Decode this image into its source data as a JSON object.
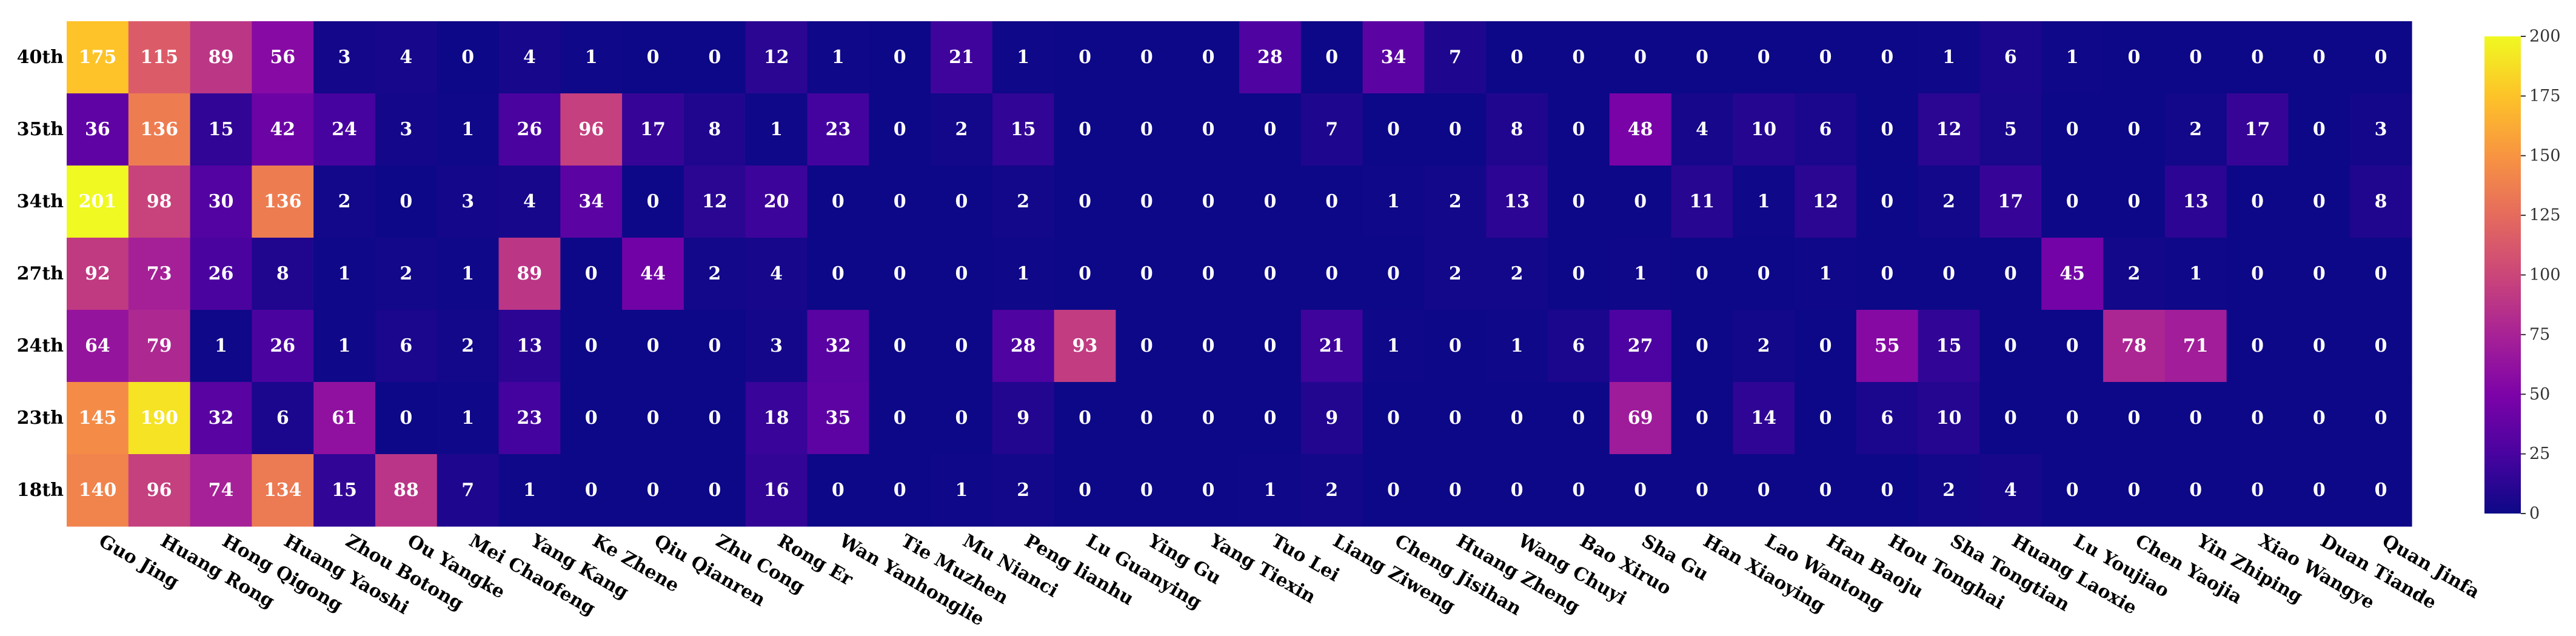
{
  "chart_data": {
    "type": "heatmap",
    "colormap": "plasma",
    "vmin": 0,
    "vmax": 200,
    "colorbar_ticks": [
      0,
      25,
      50,
      75,
      100,
      125,
      150,
      175,
      200
    ],
    "ylabels": [
      "40th",
      "35th",
      "34th",
      "27th",
      "24th",
      "23th",
      "18th"
    ],
    "xlabels": [
      "Guo Jing",
      "Huang Rong",
      "Hong Qigong",
      "Huang Yaoshi",
      "Zhou Botong",
      "Ou Yangke",
      "Mei Chaofeng",
      "Yang Kang",
      "Ke Zhene",
      "Qiu Qianren",
      "Zhu Cong",
      "Rong Er",
      "Wan Yanhonglie",
      "Tie Muzhen",
      "Mu Nianci",
      "Peng lianhu",
      "Lu Guanying",
      "Ying Gu",
      "Yang Tiexin",
      "Tuo Lei",
      "Liang Ziweng",
      "Cheng Jisihan",
      "Huang Zheng",
      "Wang Chuyi",
      "Bao Xiruo",
      "Sha Gu",
      "Han Xiaoying",
      "Lao Wantong",
      "Han Baoju",
      "Hou Tonghai",
      "Sha Tongtian",
      "Huang Laoxie",
      "Lu Youjiao",
      "Chen Yaojia",
      "Yin Zhiping",
      "Xiao Wangye",
      "Duan Tiande",
      "Quan Jinfa"
    ],
    "values": [
      [
        175,
        115,
        89,
        56,
        3,
        4,
        0,
        4,
        1,
        0,
        0,
        12,
        1,
        0,
        21,
        1,
        0,
        0,
        0,
        28,
        0,
        34,
        7,
        0,
        0,
        0,
        0,
        0,
        0,
        0,
        1,
        6,
        1,
        0,
        0,
        0,
        0,
        0
      ],
      [
        36,
        136,
        15,
        42,
        24,
        3,
        1,
        26,
        96,
        17,
        8,
        1,
        23,
        0,
        2,
        15,
        0,
        0,
        0,
        0,
        7,
        0,
        0,
        8,
        0,
        48,
        4,
        10,
        6,
        0,
        12,
        5,
        0,
        0,
        2,
        17,
        0,
        3
      ],
      [
        201,
        98,
        30,
        136,
        2,
        0,
        3,
        4,
        34,
        0,
        12,
        20,
        0,
        0,
        0,
        2,
        0,
        0,
        0,
        0,
        0,
        1,
        2,
        13,
        0,
        0,
        11,
        1,
        12,
        0,
        2,
        17,
        0,
        0,
        13,
        0,
        0,
        8
      ],
      [
        92,
        73,
        26,
        8,
        1,
        2,
        1,
        89,
        0,
        44,
        2,
        4,
        0,
        0,
        0,
        1,
        0,
        0,
        0,
        0,
        0,
        0,
        2,
        2,
        0,
        1,
        0,
        0,
        1,
        0,
        0,
        0,
        45,
        2,
        1,
        0,
        0,
        0
      ],
      [
        64,
        79,
        1,
        26,
        1,
        6,
        2,
        13,
        0,
        0,
        0,
        3,
        32,
        0,
        0,
        28,
        93,
        0,
        0,
        0,
        21,
        1,
        0,
        1,
        6,
        27,
        0,
        2,
        0,
        55,
        15,
        0,
        0,
        78,
        71,
        0,
        0,
        0
      ],
      [
        145,
        190,
        32,
        6,
        61,
        0,
        1,
        23,
        0,
        0,
        0,
        18,
        35,
        0,
        0,
        9,
        0,
        0,
        0,
        0,
        9,
        0,
        0,
        0,
        0,
        69,
        0,
        14,
        0,
        6,
        10,
        0,
        0,
        0,
        0,
        0,
        0,
        0
      ],
      [
        140,
        96,
        74,
        134,
        15,
        88,
        7,
        1,
        0,
        0,
        0,
        16,
        0,
        0,
        1,
        2,
        0,
        0,
        0,
        1,
        2,
        0,
        0,
        0,
        0,
        0,
        0,
        0,
        0,
        0,
        2,
        4,
        0,
        0,
        0,
        0,
        0,
        0
      ]
    ]
  }
}
